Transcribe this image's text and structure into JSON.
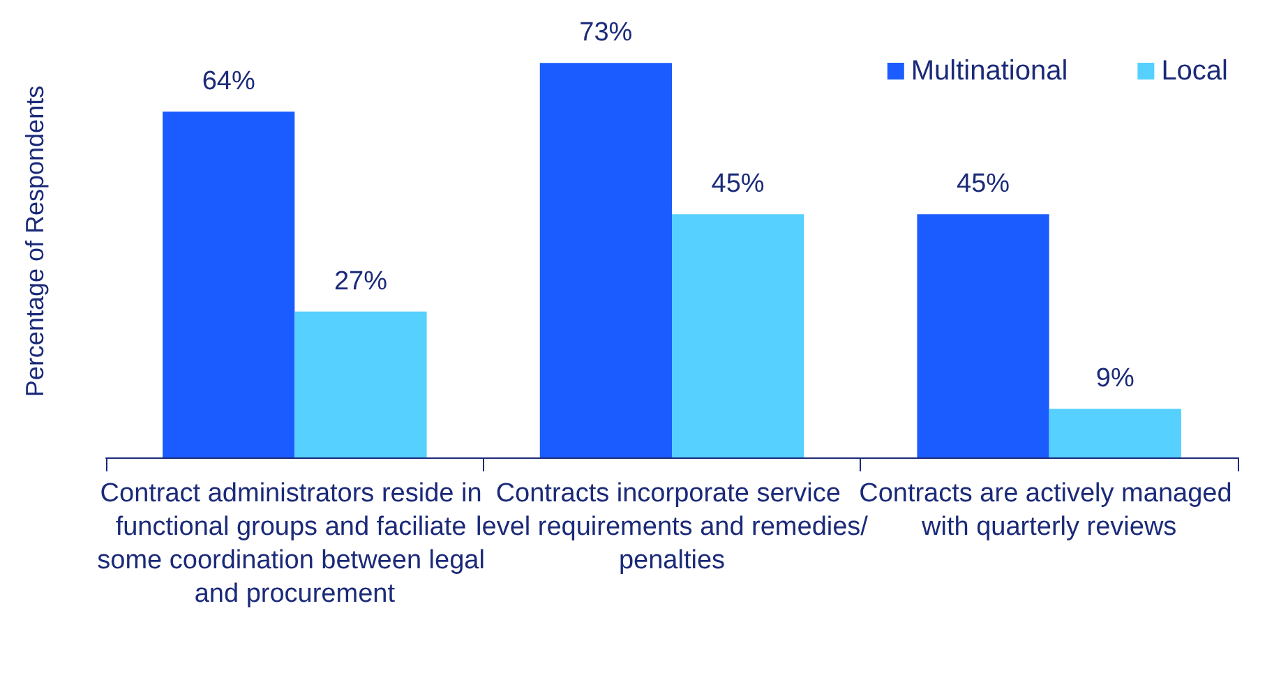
{
  "chart_data": {
    "type": "bar",
    "ylabel": "Percentage of Respondents",
    "categories": [
      "Contract administrators reside in functional groups and faciliate some coordination between legal and procurement",
      "Contracts incorporate service level requirements and remedies/penalties",
      "Contracts are actively managed with quarterly reviews"
    ],
    "series": [
      {
        "name": "Multinational",
        "color": "#1a5cff",
        "values": [
          64,
          73,
          45
        ],
        "value_labels": [
          "64%",
          "73%",
          "45%"
        ]
      },
      {
        "name": "Local",
        "color": "#55d0ff",
        "values": [
          27,
          45,
          9
        ],
        "value_labels": [
          "27%",
          "45%",
          "9%"
        ]
      }
    ],
    "legend": "top right",
    "grid": false
  }
}
